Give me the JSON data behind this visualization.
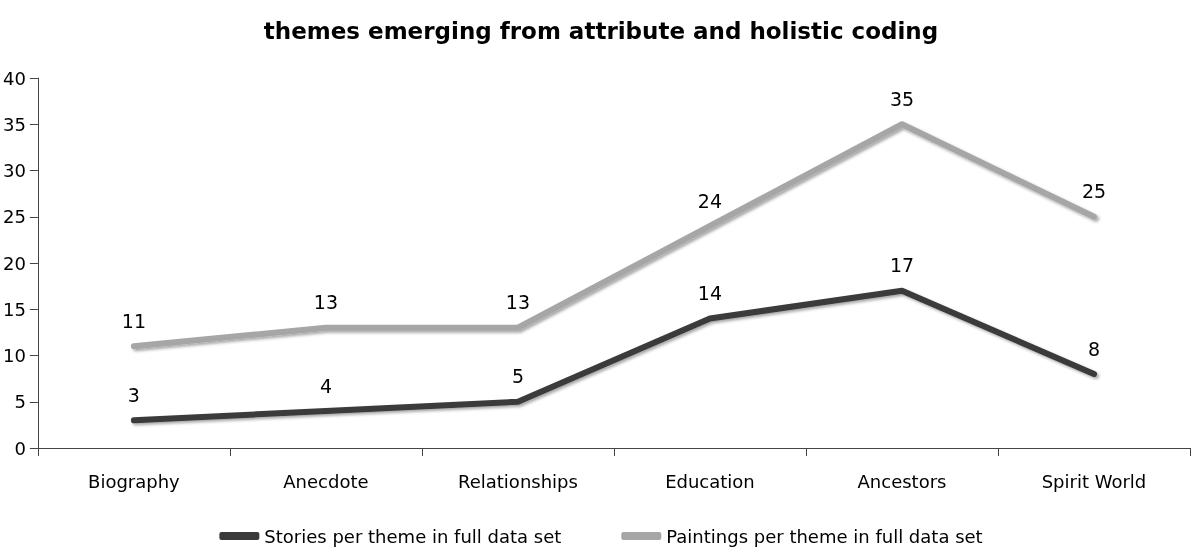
{
  "chart_data": {
    "type": "line",
    "title": "themes emerging from attribute and holistic coding",
    "categories": [
      "Biography",
      "Anecdote",
      "Relationships",
      "Education",
      "Ancestors",
      "Spirit World"
    ],
    "series": [
      {
        "name": "Stories per theme in full data set",
        "color": "#3a3a3a",
        "values": [
          3,
          4,
          5,
          14,
          17,
          8
        ]
      },
      {
        "name": "Paintings per theme in full data set",
        "color": "#a6a6a6",
        "values": [
          11,
          13,
          13,
          24,
          35,
          25
        ]
      }
    ],
    "ylim": [
      0,
      40
    ],
    "yticks": [
      0,
      5,
      10,
      15,
      20,
      25,
      30,
      35,
      40
    ],
    "grid": false,
    "legend": "bottom",
    "marker": "none",
    "line_style": "solid",
    "data_labels": true
  }
}
